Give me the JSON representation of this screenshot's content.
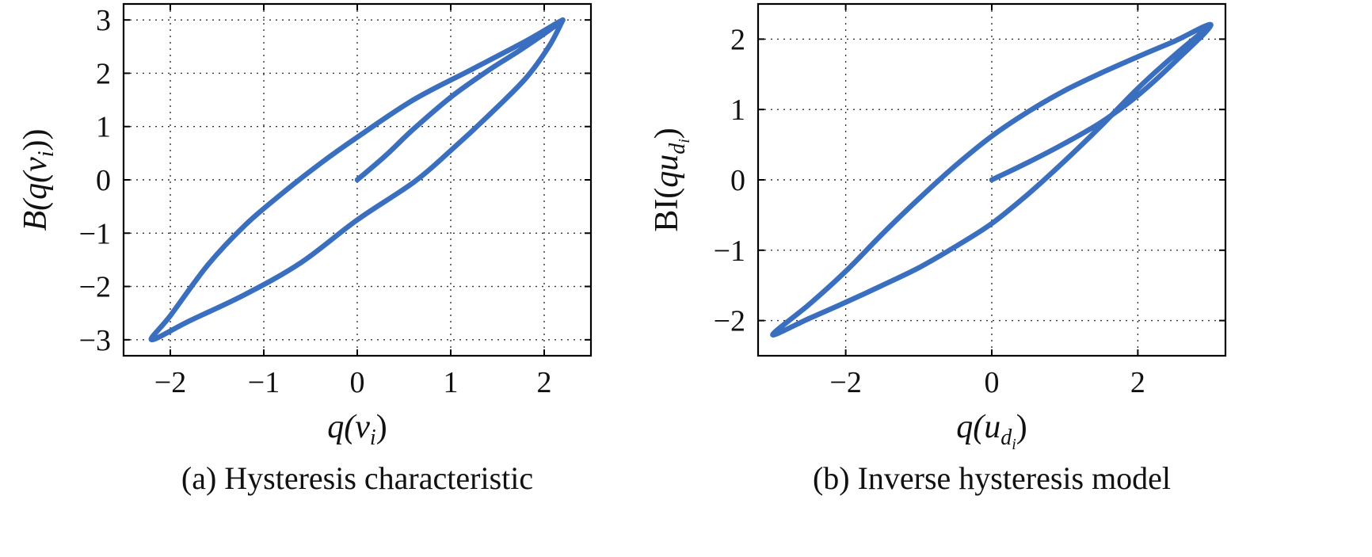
{
  "chart_data": [
    {
      "type": "line",
      "caption": "(a) Hysteresis characteristic",
      "xlabel": {
        "main": "q(v",
        "sub": "i",
        "close": ")"
      },
      "ylabel": {
        "main": "B(q(v",
        "sub": "i",
        "close": "))"
      },
      "xlim": [
        -2.5,
        2.5
      ],
      "ylim": [
        -3.3,
        3.3
      ],
      "xticks": [
        -2,
        -1,
        0,
        1,
        2
      ],
      "yticks": [
        -3,
        -2,
        -1,
        0,
        1,
        2,
        3
      ],
      "xtick_labels": [
        "−2",
        "−1",
        "0",
        "1",
        "2"
      ],
      "ytick_labels": [
        "−3",
        "−2",
        "−1",
        "0",
        "1",
        "2",
        "3"
      ],
      "grid": true,
      "color": "#3a6fbf",
      "series": [
        {
          "x": [
            0,
            0.3,
            0.6,
            1.0,
            1.4,
            1.8,
            2.2,
            1.8,
            1.2,
            0.6,
            0,
            -0.4,
            -0.8,
            -1.2,
            -1.6,
            -2.0,
            -2.2,
            -1.8,
            -1.2,
            -0.6,
            0,
            0.6,
            1.0,
            1.4,
            1.8,
            2.05,
            2.2
          ],
          "y": [
            0,
            0.45,
            0.95,
            1.55,
            2.05,
            2.5,
            3.0,
            2.6,
            2.05,
            1.5,
            0.8,
            0.3,
            -0.25,
            -0.85,
            -1.6,
            -2.55,
            -3.0,
            -2.65,
            -2.15,
            -1.55,
            -0.75,
            -0.05,
            0.55,
            1.2,
            1.9,
            2.5,
            3.0
          ]
        }
      ]
    },
    {
      "type": "line",
      "caption": "(b) Inverse hysteresis model",
      "xlabel": {
        "main": "q(u",
        "sub": "d",
        "subsub": "i",
        "close": ")"
      },
      "ylabel": {
        "main": "BI(qu",
        "sub": "d",
        "subsub": "i",
        "close": ")"
      },
      "xlim": [
        -3.2,
        3.2
      ],
      "ylim": [
        -2.5,
        2.5
      ],
      "xticks": [
        -2,
        0,
        2
      ],
      "yticks": [
        -2,
        -1,
        0,
        1,
        2
      ],
      "xtick_labels": [
        "−2",
        "0",
        "2"
      ],
      "ytick_labels": [
        "−2",
        "−1",
        "0",
        "1",
        "2"
      ],
      "grid": true,
      "color": "#3a6fbf",
      "series": [
        {
          "x": [
            0,
            0.5,
            1.0,
            1.5,
            2.0,
            2.5,
            3.0,
            2.5,
            2.0,
            1.5,
            1.0,
            0.5,
            0,
            -0.5,
            -1.0,
            -1.5,
            -2.0,
            -2.5,
            -3.0,
            -2.5,
            -2.0,
            -1.5,
            -1.0,
            -0.5,
            0,
            0.5,
            1.0,
            1.5,
            2.0,
            2.5,
            3.0
          ],
          "y": [
            0,
            0.25,
            0.52,
            0.82,
            1.2,
            1.67,
            2.2,
            1.97,
            1.75,
            1.52,
            1.27,
            0.97,
            0.62,
            0.2,
            -0.27,
            -0.77,
            -1.3,
            -1.77,
            -2.2,
            -1.97,
            -1.74,
            -1.5,
            -1.25,
            -0.95,
            -0.62,
            -0.2,
            0.27,
            0.77,
            1.3,
            1.77,
            2.2
          ]
        }
      ]
    }
  ]
}
